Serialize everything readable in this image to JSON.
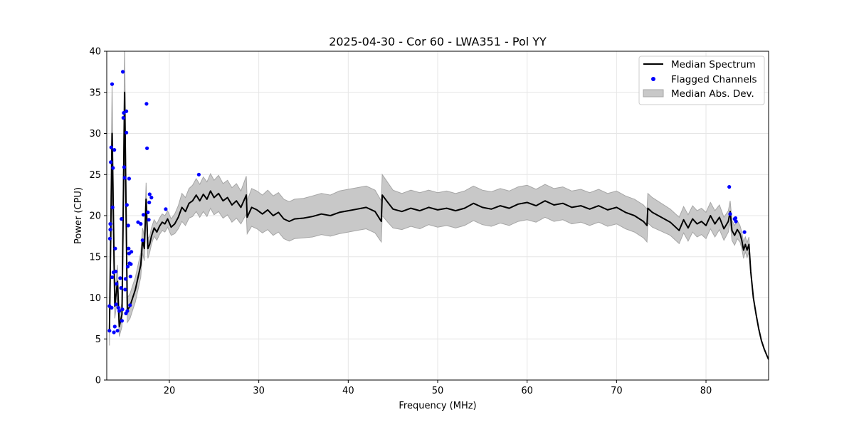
{
  "chart_data": {
    "type": "line",
    "title": "2025-04-30 - Cor 60 - LWA351 - Pol YY",
    "xlabel": "Frequency (MHz)",
    "ylabel": "Power (CPU)",
    "xlim": [
      13.0,
      87.0
    ],
    "ylim": [
      0,
      40
    ],
    "xticks": [
      20,
      30,
      40,
      50,
      60,
      70,
      80
    ],
    "yticks": [
      0,
      5,
      10,
      15,
      20,
      25,
      30,
      35,
      40
    ],
    "grid": true,
    "legend_position": "top-right",
    "colors": {
      "median": "#000000",
      "flagged": "#0000ff",
      "mad_fill": "#c8c8c8",
      "mad_edge": "#a6a6a6",
      "grid": "#e6e6e6"
    },
    "series": [
      {
        "name": "Median Spectrum",
        "kind": "line",
        "x": [
          13.3,
          13.6,
          13.9,
          14.2,
          14.4,
          14.7,
          15.0,
          15.3,
          15.6,
          15.9,
          16.2,
          16.5,
          16.8,
          17.0,
          17.2,
          17.4,
          17.6,
          17.8,
          18.0,
          18.3,
          18.6,
          18.9,
          19.2,
          19.5,
          19.8,
          20.2,
          20.6,
          21.0,
          21.4,
          21.8,
          22.2,
          22.6,
          23.0,
          23.4,
          23.8,
          24.2,
          24.6,
          25.0,
          25.5,
          26.0,
          26.5,
          27.0,
          27.5,
          28.0,
          28.6,
          28.7,
          29.2,
          29.8,
          30.4,
          31.0,
          31.6,
          32.2,
          32.8,
          33.4,
          34.0,
          35.0,
          36.0,
          37.0,
          38.0,
          39.0,
          40.0,
          41.0,
          42.0,
          43.0,
          43.7,
          43.8,
          44.5,
          45.0,
          46.0,
          47.0,
          48.0,
          49.0,
          50.0,
          51.0,
          52.0,
          53.0,
          54.0,
          55.0,
          56.0,
          57.0,
          58.0,
          59.0,
          60.0,
          61.0,
          62.0,
          63.0,
          64.0,
          65.0,
          66.0,
          67.0,
          68.0,
          69.0,
          70.0,
          71.0,
          72.0,
          73.0,
          73.4,
          73.5,
          74.0,
          75.0,
          76.0,
          77.0,
          77.5,
          78.0,
          78.5,
          79.0,
          79.5,
          80.0,
          80.5,
          81.0,
          81.5,
          82.0,
          82.5,
          82.7,
          82.9,
          83.2,
          83.5,
          83.8,
          84.0,
          84.2,
          84.4,
          84.6,
          84.8,
          85.0,
          85.3,
          85.6,
          85.9,
          86.2,
          86.5,
          86.8,
          87.0
        ],
        "y": [
          6.0,
          30.0,
          9.0,
          12.0,
          6.5,
          8.0,
          35.0,
          8.5,
          9.0,
          10.0,
          11.0,
          12.5,
          14.0,
          17.0,
          16.0,
          22.0,
          16.0,
          16.5,
          17.5,
          18.5,
          18.0,
          18.7,
          19.2,
          19.0,
          19.6,
          18.6,
          19.0,
          19.8,
          21.0,
          20.5,
          21.5,
          21.8,
          22.5,
          21.8,
          22.6,
          22.0,
          23.0,
          22.2,
          22.7,
          21.8,
          22.2,
          21.3,
          21.8,
          21.0,
          22.5,
          19.8,
          21.0,
          20.7,
          20.2,
          20.7,
          20.0,
          20.4,
          19.6,
          19.3,
          19.6,
          19.7,
          19.9,
          20.2,
          20.0,
          20.4,
          20.6,
          20.8,
          21.0,
          20.5,
          19.3,
          22.5,
          21.5,
          20.8,
          20.5,
          20.9,
          20.6,
          21.0,
          20.7,
          20.9,
          20.6,
          20.9,
          21.5,
          21.0,
          20.8,
          21.2,
          20.9,
          21.4,
          21.6,
          21.2,
          21.8,
          21.3,
          21.5,
          21.0,
          21.2,
          20.8,
          21.2,
          20.7,
          21.0,
          20.4,
          20.0,
          19.3,
          18.8,
          20.9,
          20.4,
          19.8,
          19.2,
          18.2,
          19.5,
          18.5,
          19.6,
          19.0,
          19.3,
          18.8,
          20.0,
          19.0,
          19.8,
          18.4,
          19.3,
          20.5,
          18.2,
          17.6,
          18.3,
          17.8,
          17.0,
          15.8,
          16.5,
          15.8,
          16.5,
          13.2,
          10.0,
          8.0,
          6.2,
          4.8,
          3.8,
          3.0,
          2.5
        ],
        "mad": [
          1.8,
          6.0,
          1.5,
          2.0,
          1.2,
          1.5,
          6.0,
          1.5,
          1.5,
          1.5,
          1.5,
          1.5,
          1.5,
          1.5,
          1.5,
          2.0,
          1.2,
          1.0,
          1.0,
          1.0,
          1.0,
          1.0,
          1.0,
          1.0,
          1.0,
          1.0,
          1.2,
          1.4,
          1.7,
          1.7,
          1.8,
          1.9,
          2.0,
          2.0,
          2.1,
          2.1,
          2.1,
          2.1,
          2.2,
          2.1,
          2.1,
          2.1,
          2.1,
          2.0,
          2.3,
          2.0,
          2.3,
          2.3,
          2.3,
          2.4,
          2.4,
          2.4,
          2.4,
          2.4,
          2.4,
          2.4,
          2.5,
          2.5,
          2.5,
          2.6,
          2.6,
          2.6,
          2.6,
          2.6,
          2.5,
          2.5,
          2.4,
          2.3,
          2.2,
          2.2,
          2.2,
          2.1,
          2.1,
          2.1,
          2.1,
          2.1,
          2.1,
          2.1,
          2.1,
          2.1,
          2.1,
          2.1,
          2.1,
          2.0,
          2.0,
          2.0,
          2.0,
          2.0,
          2.0,
          2.0,
          2.0,
          2.0,
          2.0,
          2.0,
          2.0,
          2.0,
          2.0,
          1.8,
          1.8,
          1.7,
          1.6,
          1.6,
          1.6,
          1.6,
          1.6,
          1.6,
          1.6,
          1.6,
          1.6,
          1.6,
          1.5,
          1.4,
          1.3,
          1.3,
          1.2,
          1.2,
          1.1,
          1.0,
          1.0,
          1.0,
          0.9,
          0.9,
          0.9,
          0.0,
          0.0,
          0.0,
          0.0,
          0.0,
          0.0,
          0.0,
          0.0
        ]
      },
      {
        "name": "Flagged Channels",
        "kind": "scatter",
        "points": [
          [
            13.3,
            6.0
          ],
          [
            13.3,
            9.0
          ],
          [
            13.35,
            17.2
          ],
          [
            13.4,
            18.3
          ],
          [
            13.4,
            19.0
          ],
          [
            13.45,
            26.5
          ],
          [
            13.5,
            28.3
          ],
          [
            13.55,
            8.8
          ],
          [
            13.6,
            12.5
          ],
          [
            13.6,
            36.0
          ],
          [
            13.65,
            21.0
          ],
          [
            13.7,
            25.8
          ],
          [
            13.75,
            13.1
          ],
          [
            13.8,
            5.8
          ],
          [
            13.85,
            28.0
          ],
          [
            13.9,
            6.5
          ],
          [
            13.95,
            16.0
          ],
          [
            14.0,
            13.2
          ],
          [
            14.05,
            9.2
          ],
          [
            14.1,
            11.7
          ],
          [
            14.2,
            6.0
          ],
          [
            14.3,
            8.8
          ],
          [
            14.4,
            8.4
          ],
          [
            14.5,
            12.4
          ],
          [
            14.6,
            11.2
          ],
          [
            14.65,
            19.6
          ],
          [
            14.7,
            7.2
          ],
          [
            14.75,
            8.6
          ],
          [
            14.8,
            37.5
          ],
          [
            14.85,
            31.9
          ],
          [
            14.9,
            32.5
          ],
          [
            14.95,
            25.9
          ],
          [
            15.0,
            24.6
          ],
          [
            15.05,
            11.0
          ],
          [
            15.1,
            12.3
          ],
          [
            15.15,
            8.1
          ],
          [
            15.2,
            32.7
          ],
          [
            15.2,
            30.1
          ],
          [
            15.25,
            21.3
          ],
          [
            15.3,
            8.4
          ],
          [
            15.35,
            13.8
          ],
          [
            15.4,
            18.8
          ],
          [
            15.45,
            16.0
          ],
          [
            15.5,
            24.5
          ],
          [
            15.5,
            15.4
          ],
          [
            15.55,
            14.2
          ],
          [
            15.6,
            9.1
          ],
          [
            15.65,
            12.6
          ],
          [
            15.7,
            14.1
          ],
          [
            15.75,
            15.6
          ],
          [
            16.5,
            19.2
          ],
          [
            16.8,
            19.0
          ],
          [
            17.0,
            17.0
          ],
          [
            17.1,
            20.1
          ],
          [
            17.45,
            33.6
          ],
          [
            17.5,
            28.2
          ],
          [
            17.6,
            20.4
          ],
          [
            17.7,
            19.5
          ],
          [
            17.75,
            21.6
          ],
          [
            17.8,
            22.6
          ],
          [
            18.0,
            22.2
          ],
          [
            19.6,
            20.8
          ],
          [
            23.3,
            25.0
          ],
          [
            82.6,
            23.5
          ],
          [
            82.7,
            20.2
          ],
          [
            83.2,
            19.6
          ],
          [
            83.3,
            19.7
          ],
          [
            83.35,
            19.3
          ],
          [
            84.3,
            18.0
          ]
        ]
      },
      {
        "name": "Median Abs. Dev.",
        "kind": "band"
      }
    ],
    "legend": [
      "Median Spectrum",
      "Flagged Channels",
      "Median Abs. Dev."
    ]
  }
}
